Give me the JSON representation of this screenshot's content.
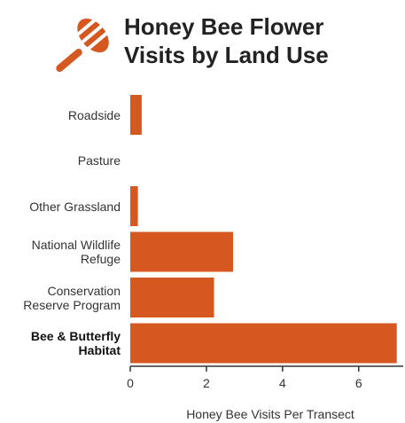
{
  "chart_data": {
    "type": "barh",
    "title": "Honey Bee Flower Visits by Land Use",
    "xlabel": "Honey Bee Visits Per Transect",
    "categories": [
      "Roadside",
      "Pasture",
      "Other Grassland",
      "National Wildlife Refuge",
      "Conservation Reserve Program",
      "Bee & Butterfly Habitat"
    ],
    "values": [
      0.3,
      0,
      0.2,
      2.7,
      2.2,
      7.0
    ],
    "color": "#d4581f",
    "xlim": [
      0,
      7.1
    ],
    "xticks": [
      0,
      2,
      4,
      6
    ],
    "grid": false
  }
}
